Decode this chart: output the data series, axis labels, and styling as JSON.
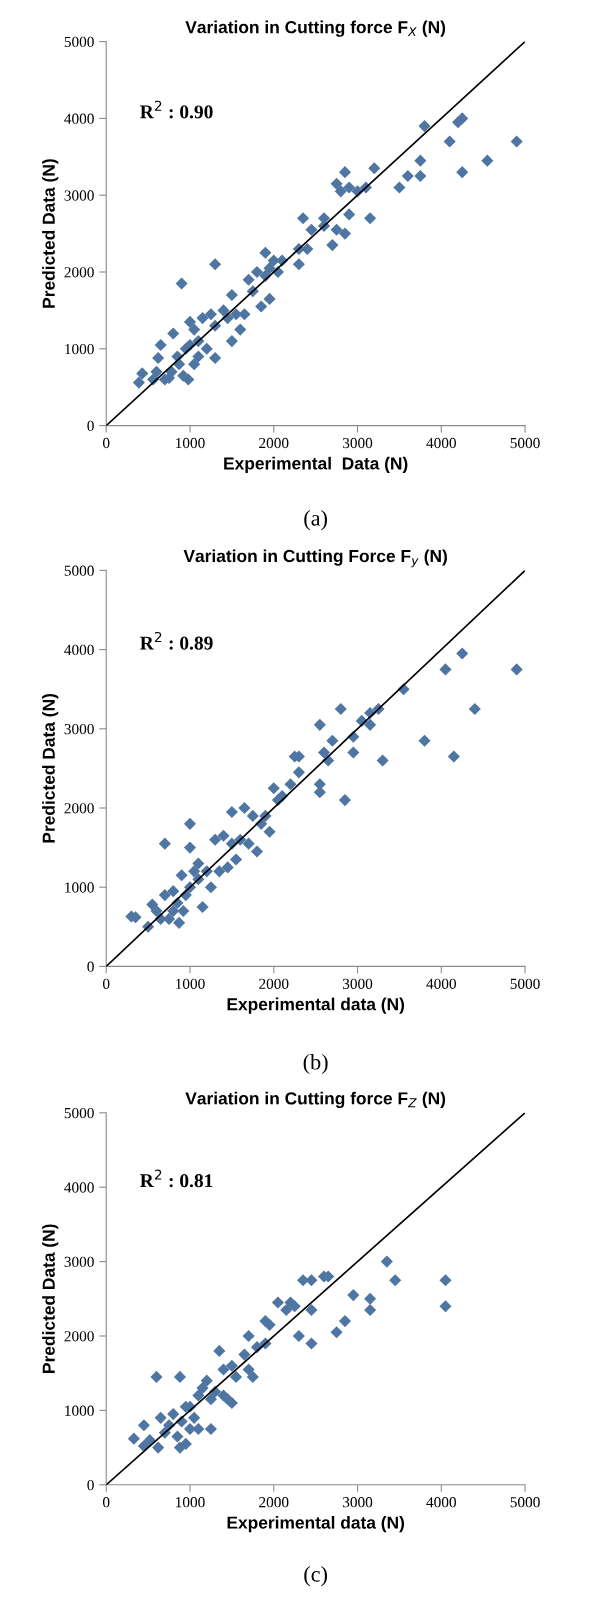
{
  "chart_data": [
    {
      "type": "scatter",
      "title": "Variation in Cutting force F$_{X}$ (N)",
      "xlabel": "Experimental  Data (N)",
      "ylabel": "Predicted Data (N)",
      "xlim": [
        0,
        5000
      ],
      "ylim": [
        0,
        5000
      ],
      "xticks": [
        0,
        1000,
        2000,
        3000,
        4000,
        5000
      ],
      "yticks": [
        0,
        1000,
        2000,
        3000,
        4000,
        5000
      ],
      "grid": false,
      "annotations": [
        "R$^{2}$ : 0.90",
        "(a)"
      ],
      "series": [
        {
          "marker": "diamond",
          "color": "#4f76a3",
          "x": [
            390,
            430,
            560,
            600,
            620,
            650,
            700,
            750,
            780,
            800,
            850,
            870,
            900,
            920,
            950,
            980,
            1000,
            1000,
            1050,
            1050,
            1100,
            1100,
            1150,
            1200,
            1250,
            1300,
            1300,
            1300,
            1400,
            1450,
            1500,
            1500,
            1550,
            1600,
            1650,
            1700,
            1750,
            1800,
            1850,
            1900,
            1900,
            1950,
            1950,
            2000,
            2050,
            2100,
            2300,
            2300,
            2350,
            2400,
            2450,
            2600,
            2600,
            2700,
            2750,
            2750,
            2800,
            2850,
            2850,
            2900,
            2900,
            3000,
            3100,
            3150,
            3200,
            3500,
            3600,
            3750,
            3750,
            3800,
            4100,
            4200,
            4250,
            4250,
            4550,
            4900
          ],
          "values": [
            560,
            680,
            600,
            700,
            880,
            1050,
            600,
            620,
            700,
            1200,
            900,
            800,
            1850,
            650,
            1000,
            600,
            1050,
            1350,
            800,
            1250,
            900,
            1100,
            1400,
            1000,
            1450,
            2100,
            880,
            1300,
            1500,
            1400,
            1700,
            1100,
            1450,
            1250,
            1450,
            1900,
            1750,
            2000,
            1550,
            1950,
            2250,
            1650,
            2050,
            2150,
            2000,
            2150,
            2100,
            2300,
            2700,
            2300,
            2550,
            2600,
            2700,
            2350,
            3150,
            2550,
            3050,
            2500,
            3300,
            2750,
            3100,
            3050,
            3100,
            2700,
            3350,
            3100,
            3250,
            3450,
            3250,
            3900,
            3700,
            3950,
            4000,
            3300,
            3450,
            3700
          ]
        },
        {
          "type": "line",
          "color": "#000000",
          "x": [
            0,
            5000
          ],
          "values": [
            0,
            5000
          ]
        }
      ]
    },
    {
      "type": "scatter",
      "title": "Variation in Cutting Force F$_{y}$ (N)",
      "xlabel": "Experimental data (N)",
      "ylabel": "Predicted Data (N)",
      "xlim": [
        0,
        5000
      ],
      "ylim": [
        0,
        5000
      ],
      "xticks": [
        0,
        1000,
        2000,
        3000,
        4000,
        5000
      ],
      "yticks": [
        0,
        1000,
        2000,
        3000,
        4000,
        5000
      ],
      "grid": false,
      "annotations": [
        "R$^{2}$ : 0.89",
        "(b)"
      ],
      "series": [
        {
          "marker": "diamond",
          "color": "#4f76a3",
          "x": [
            300,
            350,
            500,
            550,
            600,
            650,
            700,
            700,
            750,
            800,
            800,
            850,
            870,
            900,
            920,
            950,
            1000,
            1000,
            1000,
            1050,
            1100,
            1100,
            1150,
            1200,
            1250,
            1300,
            1350,
            1400,
            1450,
            1500,
            1500,
            1550,
            1600,
            1650,
            1700,
            1750,
            1800,
            1850,
            1900,
            1950,
            2000,
            2050,
            2100,
            2200,
            2250,
            2300,
            2300,
            2550,
            2550,
            2550,
            2600,
            2650,
            2700,
            2800,
            2850,
            2950,
            2950,
            3050,
            3150,
            3150,
            3250,
            3300,
            3550,
            3800,
            4050,
            4150,
            4250,
            4400,
            4900
          ],
          "values": [
            630,
            620,
            500,
            780,
            700,
            600,
            900,
            1550,
            600,
            700,
            950,
            800,
            550,
            1150,
            700,
            900,
            1000,
            1500,
            1800,
            1200,
            1100,
            1300,
            750,
            1200,
            1000,
            1600,
            1200,
            1650,
            1250,
            1950,
            1550,
            1350,
            1600,
            2000,
            1550,
            1900,
            1450,
            1800,
            1900,
            1700,
            2250,
            2100,
            2150,
            2300,
            2650,
            2450,
            2650,
            2200,
            2300,
            3050,
            2700,
            2600,
            2850,
            3250,
            2100,
            2700,
            2900,
            3100,
            3050,
            3200,
            3250,
            2600,
            3500,
            2850,
            3750,
            2650,
            3950,
            3250,
            3750
          ]
        },
        {
          "type": "line",
          "color": "#000000",
          "x": [
            0,
            5000
          ],
          "values": [
            0,
            5000
          ]
        }
      ]
    },
    {
      "type": "scatter",
      "title": "Variation in Cutting force F$_{Z}$ (N)",
      "xlabel": "Experimental data (N)",
      "ylabel": "Predicted Data (N)",
      "xlim": [
        0,
        5000
      ],
      "ylim": [
        0,
        5000
      ],
      "xticks": [
        0,
        1000,
        2000,
        3000,
        4000,
        5000
      ],
      "yticks": [
        0,
        1000,
        2000,
        3000,
        4000,
        5000
      ],
      "grid": false,
      "annotations": [
        "R$^{2}$ : 0.81",
        "(c)"
      ],
      "series": [
        {
          "marker": "diamond",
          "color": "#4f76a3",
          "x": [
            330,
            450,
            450,
            520,
            600,
            620,
            650,
            700,
            750,
            800,
            850,
            880,
            880,
            900,
            950,
            950,
            1000,
            1000,
            1050,
            1100,
            1100,
            1150,
            1200,
            1250,
            1250,
            1300,
            1350,
            1400,
            1400,
            1450,
            1500,
            1500,
            1550,
            1650,
            1700,
            1700,
            1750,
            1800,
            1900,
            1900,
            1950,
            2050,
            2150,
            2200,
            2250,
            2300,
            2350,
            2450,
            2450,
            2450,
            2600,
            2650,
            2750,
            2850,
            2950,
            3150,
            3150,
            3350,
            3450,
            4050,
            4050
          ],
          "values": [
            620,
            800,
            520,
            600,
            1450,
            500,
            900,
            700,
            800,
            950,
            650,
            1450,
            500,
            850,
            550,
            1050,
            750,
            1050,
            900,
            1200,
            750,
            1300,
            1400,
            1150,
            750,
            1250,
            1800,
            1550,
            1200,
            1150,
            1600,
            1100,
            1450,
            1750,
            2000,
            1550,
            1450,
            1850,
            2200,
            1900,
            2150,
            2450,
            2350,
            2450,
            2400,
            2000,
            2750,
            2750,
            2350,
            1900,
            2800,
            2800,
            2050,
            2200,
            2550,
            2350,
            2500,
            3000,
            2750,
            2400,
            2750
          ]
        },
        {
          "type": "line",
          "color": "#000000",
          "x": [
            0,
            5000
          ],
          "values": [
            0,
            5000
          ]
        }
      ]
    }
  ]
}
